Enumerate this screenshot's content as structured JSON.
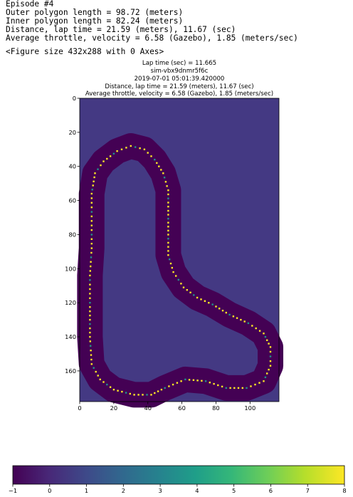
{
  "stdout": {
    "episode": "Episode #4",
    "outer": "Outer polygon length = 98.72 (meters)",
    "inner": "Inner polygon length = 82.24 (meters)",
    "distance": "Distance, lap time = 21.59 (meters), 11.67 (sec)",
    "throttle": "Average throttle, velocity = 6.58 (Gazebo), 1.85 (meters/sec)"
  },
  "figure_repr": "<Figure size 432x288 with 0 Axes>",
  "plot": {
    "title_lines": [
      "Lap time (sec) = 11.665",
      "sim-vbx9dnmr5f6c",
      "2019-07-01 05:01:39.420000",
      "Distance, lap time = 21.59 (meters), 11.67 (sec)",
      "Average throttle, velocity = 6.58 (Gazebo), 1.85 (meters/sec)"
    ],
    "x_ticks": [
      "0",
      "20",
      "40",
      "60",
      "80",
      "100"
    ],
    "y_ticks": [
      "0",
      "20",
      "40",
      "60",
      "80",
      "100",
      "120",
      "140",
      "160"
    ],
    "colorbar_ticks": [
      "−1",
      "0",
      "1",
      "2",
      "3",
      "4",
      "5",
      "6",
      "7",
      "8"
    ],
    "colors": {
      "background": "#443983",
      "track": "#440154",
      "mid": "#21918c",
      "high": "#fde725"
    }
  },
  "chart_data": {
    "type": "heatmap",
    "colormap": "viridis",
    "value_range": [
      -1,
      8
    ],
    "xlim": [
      0,
      117
    ],
    "ylim": [
      178,
      0
    ],
    "x_ticks": [
      0,
      20,
      40,
      60,
      80,
      100
    ],
    "y_ticks": [
      0,
      20,
      40,
      60,
      80,
      100,
      120,
      140,
      160
    ],
    "background_value": 0,
    "track_value": -1,
    "track_centerline": [
      [
        7,
        88
      ],
      [
        7,
        72
      ],
      [
        7,
        56
      ],
      [
        9,
        44
      ],
      [
        14,
        37
      ],
      [
        22,
        31
      ],
      [
        30,
        28
      ],
      [
        38,
        30
      ],
      [
        44,
        36
      ],
      [
        49,
        44
      ],
      [
        52,
        54
      ],
      [
        52,
        66
      ],
      [
        52,
        80
      ],
      [
        52,
        92
      ],
      [
        55,
        102
      ],
      [
        61,
        111
      ],
      [
        69,
        117
      ],
      [
        78,
        121
      ],
      [
        88,
        127
      ],
      [
        99,
        132
      ],
      [
        108,
        138
      ],
      [
        112,
        146
      ],
      [
        112,
        157
      ],
      [
        108,
        166
      ],
      [
        98,
        170
      ],
      [
        86,
        170
      ],
      [
        74,
        166
      ],
      [
        62,
        165
      ],
      [
        50,
        170
      ],
      [
        42,
        174
      ],
      [
        32,
        174
      ],
      [
        20,
        171
      ],
      [
        12,
        165
      ],
      [
        7,
        156
      ],
      [
        6,
        140
      ],
      [
        6,
        120
      ],
      [
        6,
        104
      ]
    ],
    "path_values": [
      8,
      5
    ]
  }
}
